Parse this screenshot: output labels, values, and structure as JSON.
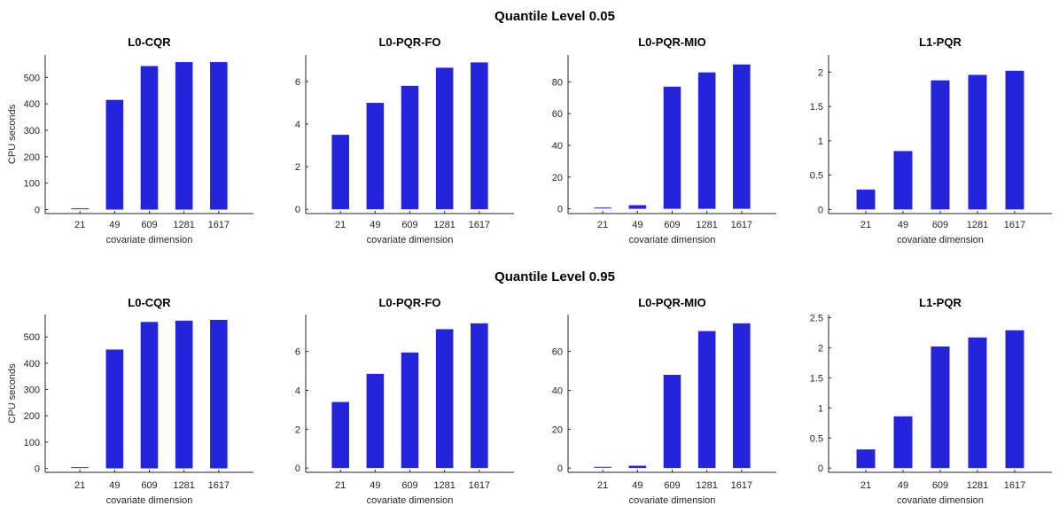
{
  "chart_data": [
    {
      "row_title": "Quantile Level 0.05",
      "panels": [
        {
          "type": "bar",
          "title": "L0-CQR",
          "xlabel": "covariate dimension",
          "ylabel": "CPU seconds",
          "categories": [
            "21",
            "49",
            "609",
            "1281",
            "1617"
          ],
          "values": [
            3,
            415,
            543,
            558,
            558
          ],
          "ylim": [
            -15,
            585
          ],
          "yticks": [
            0,
            100,
            200,
            300,
            400,
            500
          ],
          "ytick_labels": [
            "0",
            "100",
            "200",
            "300",
            "400",
            "500"
          ]
        },
        {
          "type": "bar",
          "title": "L0-PQR-FO",
          "xlabel": "covariate dimension",
          "ylabel": "",
          "categories": [
            "21",
            "49",
            "609",
            "1281",
            "1617"
          ],
          "values": [
            3.5,
            5.0,
            5.8,
            6.65,
            6.9
          ],
          "ylim": [
            -0.2,
            7.25
          ],
          "yticks": [
            0,
            2,
            4,
            6
          ],
          "ytick_labels": [
            "0",
            "2",
            "4",
            "6"
          ]
        },
        {
          "type": "bar",
          "title": "L0-PQR-MIO",
          "xlabel": "covariate dimension",
          "ylabel": "",
          "categories": [
            "21",
            "49",
            "609",
            "1281",
            "1617"
          ],
          "values": [
            0.5,
            2.3,
            77,
            86,
            91
          ],
          "ylim": [
            -3,
            97
          ],
          "yticks": [
            0,
            20,
            40,
            60,
            80
          ],
          "ytick_labels": [
            "0",
            "20",
            "40",
            "60",
            "80"
          ]
        },
        {
          "type": "bar",
          "title": "L1-PQR",
          "xlabel": "covariate dimension",
          "ylabel": "",
          "categories": [
            "21",
            "49",
            "609",
            "1281",
            "1617"
          ],
          "values": [
            0.29,
            0.85,
            1.88,
            1.96,
            2.02
          ],
          "ylim": [
            -0.06,
            2.25
          ],
          "yticks": [
            0,
            0.5,
            1,
            1.5,
            2
          ],
          "ytick_labels": [
            "0",
            "0.5",
            "1",
            "1.5",
            "2"
          ]
        }
      ]
    },
    {
      "row_title": "Quantile Level 0.95",
      "panels": [
        {
          "type": "bar",
          "title": "L0-CQR",
          "xlabel": "covariate dimension",
          "ylabel": "CPU seconds",
          "categories": [
            "21",
            "49",
            "609",
            "1281",
            "1617"
          ],
          "values": [
            3,
            452,
            557,
            562,
            565
          ],
          "ylim": [
            -15,
            585
          ],
          "yticks": [
            0,
            100,
            200,
            300,
            400,
            500
          ],
          "ytick_labels": [
            "0",
            "100",
            "200",
            "300",
            "400",
            "500"
          ]
        },
        {
          "type": "bar",
          "title": "L0-PQR-FO",
          "xlabel": "covariate dimension",
          "ylabel": "",
          "categories": [
            "21",
            "49",
            "609",
            "1281",
            "1617"
          ],
          "values": [
            3.4,
            4.85,
            5.95,
            7.15,
            7.45
          ],
          "ylim": [
            -0.22,
            7.9
          ],
          "yticks": [
            0,
            2,
            4,
            6
          ],
          "ytick_labels": [
            "0",
            "2",
            "4",
            "6"
          ]
        },
        {
          "type": "bar",
          "title": "L0-PQR-MIO",
          "xlabel": "covariate dimension",
          "ylabel": "",
          "categories": [
            "21",
            "49",
            "609",
            "1281",
            "1617"
          ],
          "values": [
            0.4,
            1.2,
            48,
            70.5,
            74.5
          ],
          "ylim": [
            -2.2,
            79
          ],
          "yticks": [
            0,
            20,
            40,
            60
          ],
          "ytick_labels": [
            "0",
            "20",
            "40",
            "60"
          ]
        },
        {
          "type": "bar",
          "title": "L1-PQR",
          "xlabel": "covariate dimension",
          "ylabel": "",
          "categories": [
            "21",
            "49",
            "609",
            "1281",
            "1617"
          ],
          "values": [
            0.31,
            0.86,
            2.02,
            2.17,
            2.29
          ],
          "ylim": [
            -0.07,
            2.55
          ],
          "yticks": [
            0,
            0.5,
            1,
            1.5,
            2,
            2.5
          ],
          "ytick_labels": [
            "0",
            "0.5",
            "1",
            "1.5",
            "2",
            "2.5"
          ]
        }
      ]
    }
  ],
  "style": {
    "bar_color": "#2424dd",
    "axis_color": "#262626"
  }
}
